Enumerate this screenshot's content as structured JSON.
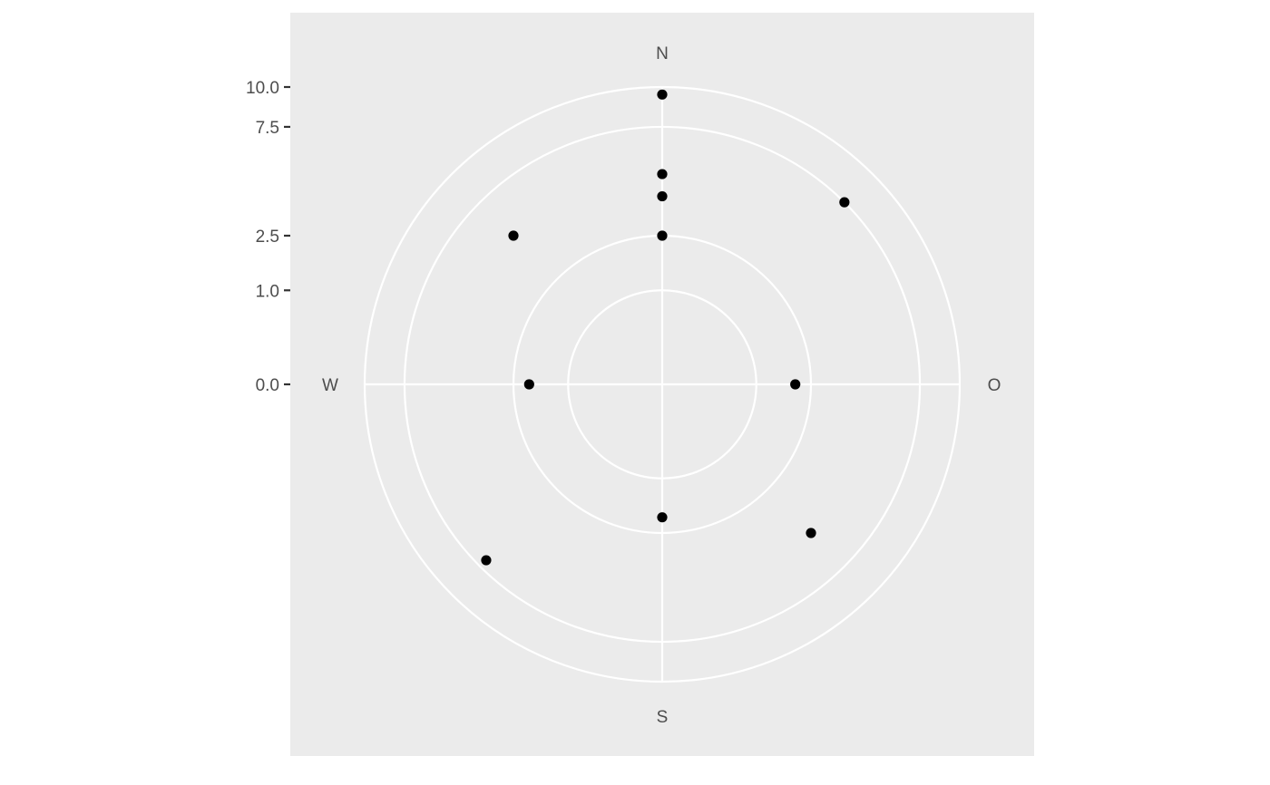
{
  "chart_data": {
    "type": "scatter",
    "coordinate_system": "polar",
    "radial_scale": "sqrt",
    "title": "",
    "xlabel": "",
    "ylabel": "",
    "rlim": [
      0,
      10
    ],
    "radial_ticks": [
      {
        "value": 0.0,
        "label": "0.0"
      },
      {
        "value": 1.0,
        "label": "1.0"
      },
      {
        "value": 2.5,
        "label": "2.5"
      },
      {
        "value": 7.5,
        "label": "7.5"
      },
      {
        "value": 10.0,
        "label": "10.0"
      }
    ],
    "directions": [
      {
        "label": "N",
        "angle_deg": 0
      },
      {
        "label": "O",
        "angle_deg": 90
      },
      {
        "label": "S",
        "angle_deg": 180
      },
      {
        "label": "W",
        "angle_deg": 270
      }
    ],
    "grid": true,
    "points": [
      {
        "angle_deg": 0,
        "r": 9.5
      },
      {
        "angle_deg": 45,
        "r": 7.5
      },
      {
        "angle_deg": 0,
        "r": 5.0
      },
      {
        "angle_deg": 0,
        "r": 4.0
      },
      {
        "angle_deg": 0,
        "r": 2.5
      },
      {
        "angle_deg": 315,
        "r": 5.0
      },
      {
        "angle_deg": 270,
        "r": 2.0
      },
      {
        "angle_deg": 90,
        "r": 2.0
      },
      {
        "angle_deg": 180,
        "r": 2.0
      },
      {
        "angle_deg": 135,
        "r": 5.0
      },
      {
        "angle_deg": 225,
        "r": 7.0
      }
    ],
    "colors": {
      "panel": "#ebebeb",
      "grid": "#ffffff",
      "point": "#000000",
      "text": "#4d4d4d",
      "tick": "#333333"
    }
  }
}
